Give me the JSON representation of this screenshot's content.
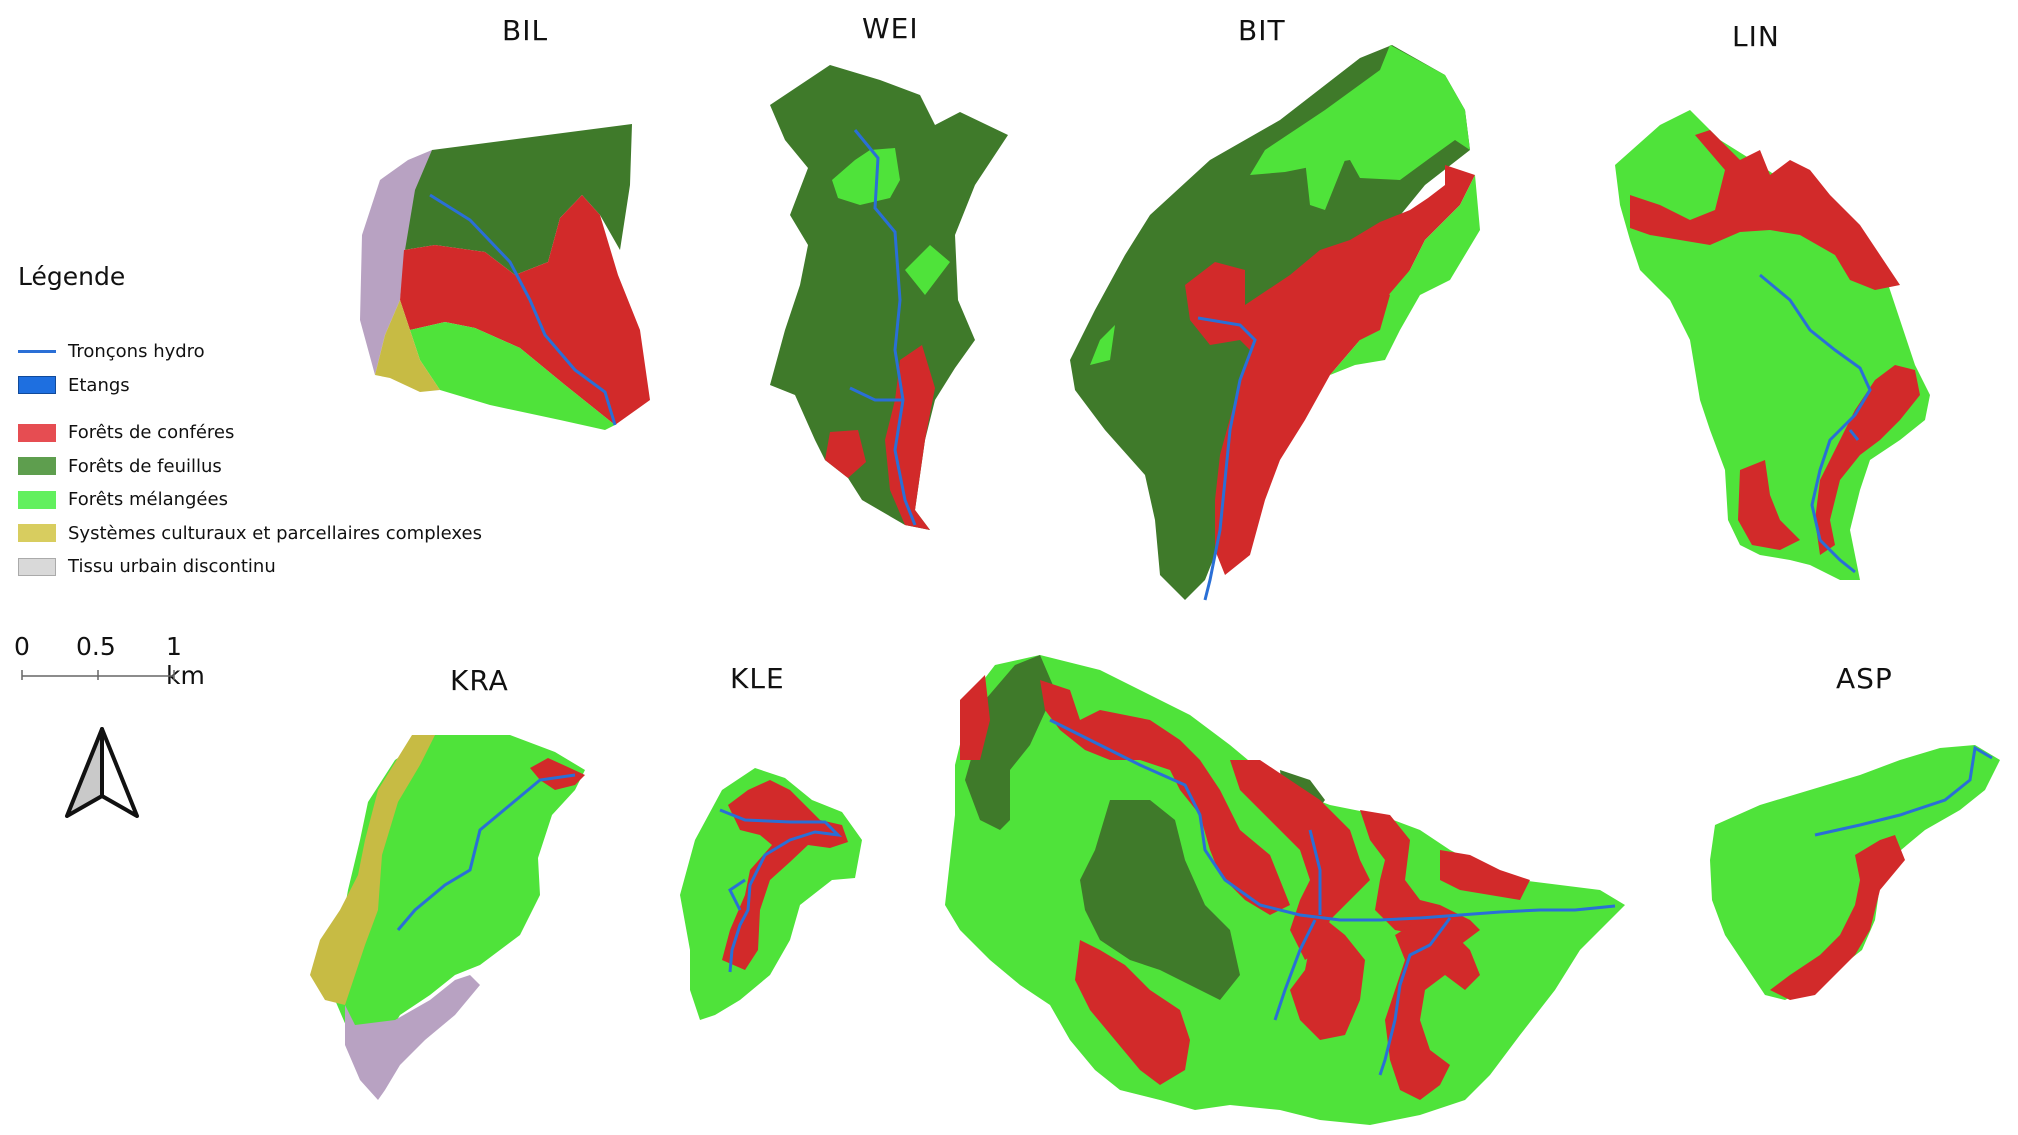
{
  "catchments": [
    {
      "id": "BIL",
      "label": "BIL"
    },
    {
      "id": "WEI",
      "label": "WEI"
    },
    {
      "id": "BIT",
      "label": "BIT"
    },
    {
      "id": "LIN",
      "label": "LIN"
    },
    {
      "id": "KRA",
      "label": "KRA"
    },
    {
      "id": "KLE",
      "label": "KLE"
    },
    {
      "id": "ASP",
      "label": "ASP"
    }
  ],
  "legend": {
    "title": "Légende",
    "items": [
      {
        "label": "Tronçons hydro",
        "color": "#2a6fd6",
        "kind": "line"
      },
      {
        "label": "Etangs",
        "color": "#1e6fe0",
        "kind": "box"
      },
      {
        "label": "Forêts de conféres",
        "color": "#e64d52",
        "kind": "box"
      },
      {
        "label": "Forêts de feuillus",
        "color": "#5e9e4e",
        "kind": "box"
      },
      {
        "label": "Forêts mélangées",
        "color": "#62f05e",
        "kind": "box"
      },
      {
        "label": "Systèmes culturaux et parcellaires complexes",
        "color": "#d8cd5f",
        "kind": "box"
      },
      {
        "label": "Tissu urbain discontinu",
        "color": "#d9d9d9",
        "kind": "box"
      }
    ]
  },
  "scale_bar": {
    "labels": [
      "0",
      "0.5",
      "1 km"
    ]
  },
  "colors": {
    "conifer": "#d22a2a",
    "broadleaf": "#3f7a2a",
    "mixed": "#4fe33a",
    "crops": "#c7bb44",
    "urban": "#b8a2c2",
    "stream": "#2a6fd6"
  }
}
